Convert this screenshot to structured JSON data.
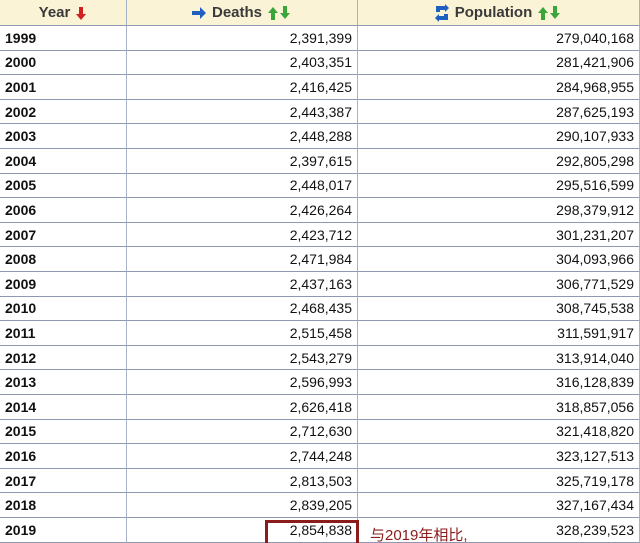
{
  "table": {
    "header": [
      "Year",
      "Deaths",
      "Population"
    ],
    "rows": [
      [
        "1999",
        "2,391,399",
        "279,040,168"
      ],
      [
        "2000",
        "2,403,351",
        "281,421,906"
      ],
      [
        "2001",
        "2,416,425",
        "284,968,955"
      ],
      [
        "2002",
        "2,443,387",
        "287,625,193"
      ],
      [
        "2003",
        "2,448,288",
        "290,107,933"
      ],
      [
        "2004",
        "2,397,615",
        "292,805,298"
      ],
      [
        "2005",
        "2,448,017",
        "295,516,599"
      ],
      [
        "2006",
        "2,426,264",
        "298,379,912"
      ],
      [
        "2007",
        "2,423,712",
        "301,231,207"
      ],
      [
        "2008",
        "2,471,984",
        "304,093,966"
      ],
      [
        "2009",
        "2,437,163",
        "306,771,529"
      ],
      [
        "2010",
        "2,468,435",
        "308,745,538"
      ],
      [
        "2011",
        "2,515,458",
        "311,591,917"
      ],
      [
        "2012",
        "2,543,279",
        "313,914,040"
      ],
      [
        "2013",
        "2,596,993",
        "316,128,839"
      ],
      [
        "2014",
        "2,626,418",
        "318,857,056"
      ],
      [
        "2015",
        "2,712,630",
        "321,418,820"
      ],
      [
        "2016",
        "2,744,248",
        "323,127,513"
      ],
      [
        "2017",
        "2,813,503",
        "325,719,178"
      ],
      [
        "2018",
        "2,839,205",
        "327,167,434"
      ],
      [
        "2019",
        "2,854,838",
        "328,239,523"
      ]
    ]
  },
  "annotation": "与2019年相比,"
}
